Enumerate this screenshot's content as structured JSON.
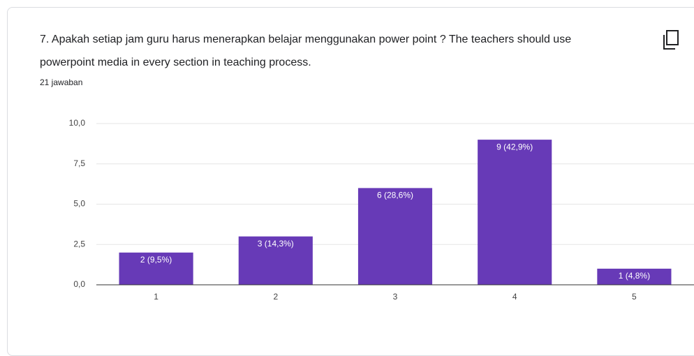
{
  "chart_data": {
    "type": "bar",
    "title": "7. Apakah setiap jam guru harus menerapkan belajar menggunakan power point ? The teachers should use powerpoint media in every section in teaching process.",
    "subtitle": "21 jawaban",
    "categories": [
      "1",
      "2",
      "3",
      "4",
      "5"
    ],
    "values": [
      2,
      3,
      6,
      9,
      1
    ],
    "value_labels": [
      "2 (9,5%)",
      "3 (14,3%)",
      "6 (28,6%)",
      "9 (42,9%)",
      "1 (4,8%)"
    ],
    "color": "#673ab7",
    "ylim": [
      0,
      10
    ],
    "yticks": [
      {
        "value": 0,
        "label": "0,0"
      },
      {
        "value": 2.5,
        "label": "2,5"
      },
      {
        "value": 5,
        "label": "5,0"
      },
      {
        "value": 7.5,
        "label": "7,5"
      },
      {
        "value": 10,
        "label": "10,0"
      }
    ],
    "grid": true
  }
}
